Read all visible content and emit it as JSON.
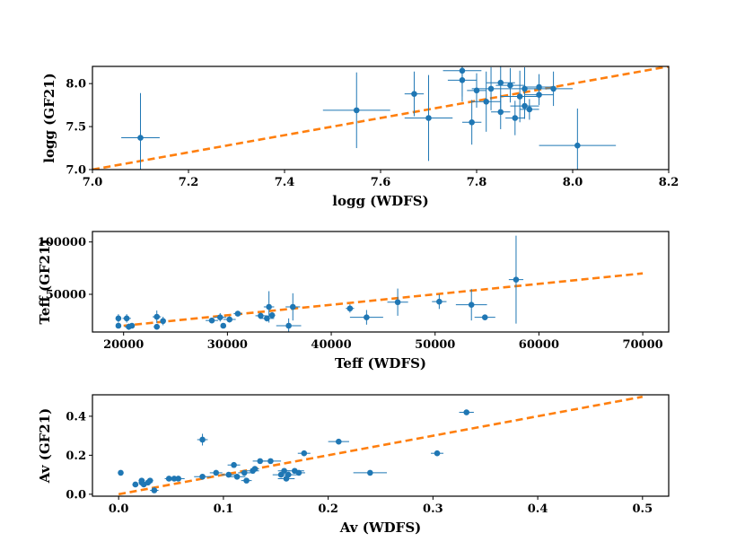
{
  "chart_data": [
    {
      "type": "scatter",
      "xlabel": "logg (WDFS)",
      "ylabel": "logg (GF21)",
      "xlim": [
        7.0,
        8.2
      ],
      "ylim": [
        7.0,
        8.2
      ],
      "xticks": [
        "7.0",
        "7.2",
        "7.4",
        "7.6",
        "7.8",
        "8.0",
        "8.2"
      ],
      "yticks": [
        "7.0",
        "7.5",
        "8.0"
      ],
      "marker_color": "#1f77b4",
      "line": {
        "x": [
          7.0,
          8.2
        ],
        "y": [
          7.0,
          8.2
        ],
        "color": "#ff7f0e",
        "style": "dashed"
      },
      "points": [
        {
          "x": 7.1,
          "y": 7.37,
          "xerr": 0.04,
          "yerr": 0.52
        },
        {
          "x": 7.55,
          "y": 7.69,
          "xerr": 0.07,
          "yerr": 0.44
        },
        {
          "x": 7.67,
          "y": 7.88,
          "xerr": 0.02,
          "yerr": 0.26
        },
        {
          "x": 7.7,
          "y": 7.6,
          "xerr": 0.05,
          "yerr": 0.5
        },
        {
          "x": 7.77,
          "y": 8.04,
          "xerr": 0.03,
          "yerr": 0.25
        },
        {
          "x": 7.77,
          "y": 8.15,
          "xerr": 0.04,
          "yerr": 0.3
        },
        {
          "x": 7.79,
          "y": 7.55,
          "xerr": 0.02,
          "yerr": 0.26
        },
        {
          "x": 7.8,
          "y": 7.92,
          "xerr": 0.02,
          "yerr": 0.2
        },
        {
          "x": 7.82,
          "y": 7.79,
          "xerr": 0.03,
          "yerr": 0.35
        },
        {
          "x": 7.83,
          "y": 7.94,
          "xerr": 0.04,
          "yerr": 0.25
        },
        {
          "x": 7.85,
          "y": 7.67,
          "xerr": 0.02,
          "yerr": 0.2
        },
        {
          "x": 7.85,
          "y": 8.01,
          "xerr": 0.03,
          "yerr": 0.3
        },
        {
          "x": 7.87,
          "y": 7.98,
          "xerr": 0.03,
          "yerr": 0.2
        },
        {
          "x": 7.88,
          "y": 7.6,
          "xerr": 0.02,
          "yerr": 0.2
        },
        {
          "x": 7.89,
          "y": 7.85,
          "xerr": 0.04,
          "yerr": 0.3
        },
        {
          "x": 7.9,
          "y": 7.94,
          "xerr": 0.03,
          "yerr": 0.25
        },
        {
          "x": 7.9,
          "y": 7.74,
          "xerr": 0.03,
          "yerr": 0.15
        },
        {
          "x": 7.91,
          "y": 7.7,
          "xerr": 0.02,
          "yerr": 0.12
        },
        {
          "x": 7.93,
          "y": 7.87,
          "xerr": 0.03,
          "yerr": 0.12
        },
        {
          "x": 7.93,
          "y": 7.96,
          "xerr": 0.03,
          "yerr": 0.15
        },
        {
          "x": 7.96,
          "y": 7.94,
          "xerr": 0.04,
          "yerr": 0.2
        },
        {
          "x": 8.01,
          "y": 7.28,
          "xerr": 0.08,
          "yerr": 0.43
        }
      ]
    },
    {
      "type": "scatter",
      "xlabel": "Teff (WDFS)",
      "ylabel": "Teff (GF21)",
      "xlim": [
        17000,
        72500
      ],
      "ylim": [
        14000,
        110000
      ],
      "xticks": [
        "20000",
        "30000",
        "40000",
        "50000",
        "60000",
        "70000"
      ],
      "yticks": [
        "50000",
        "100000"
      ],
      "marker_color": "#1f77b4",
      "line": {
        "x": [
          20000,
          70000
        ],
        "y": [
          20000,
          70000
        ],
        "color": "#ff7f0e",
        "style": "dashed"
      },
      "points": [
        {
          "x": 19500,
          "y": 27000,
          "xerr": 0,
          "yerr": 4000
        },
        {
          "x": 19500,
          "y": 20000,
          "xerr": 0,
          "yerr": 2000
        },
        {
          "x": 20300,
          "y": 27000,
          "xerr": 400,
          "yerr": 4000
        },
        {
          "x": 20500,
          "y": 19000,
          "xerr": 400,
          "yerr": 3000
        },
        {
          "x": 20800,
          "y": 20000,
          "xerr": 0,
          "yerr": 1500
        },
        {
          "x": 23200,
          "y": 28500,
          "xerr": 400,
          "yerr": 6000
        },
        {
          "x": 23200,
          "y": 19000,
          "xerr": 300,
          "yerr": 2000
        },
        {
          "x": 23800,
          "y": 24500,
          "xerr": 0,
          "yerr": 4000
        },
        {
          "x": 28500,
          "y": 25000,
          "xerr": 600,
          "yerr": 1500
        },
        {
          "x": 29300,
          "y": 28000,
          "xerr": 600,
          "yerr": 4000
        },
        {
          "x": 29600,
          "y": 20000,
          "xerr": 0,
          "yerr": 1500
        },
        {
          "x": 30200,
          "y": 26000,
          "xerr": 600,
          "yerr": 3000
        },
        {
          "x": 31000,
          "y": 31500,
          "xerr": 400,
          "yerr": 1500
        },
        {
          "x": 33200,
          "y": 29500,
          "xerr": 500,
          "yerr": 3000
        },
        {
          "x": 33800,
          "y": 27000,
          "xerr": 700,
          "yerr": 3000
        },
        {
          "x": 34000,
          "y": 38000,
          "xerr": 500,
          "yerr": 15000
        },
        {
          "x": 34300,
          "y": 30000,
          "xerr": 300,
          "yerr": 3000
        },
        {
          "x": 35900,
          "y": 20000,
          "xerr": 1200,
          "yerr": 7000
        },
        {
          "x": 36300,
          "y": 38000,
          "xerr": 700,
          "yerr": 13000
        },
        {
          "x": 41800,
          "y": 36500,
          "xerr": 400,
          "yerr": 4000
        },
        {
          "x": 43400,
          "y": 28000,
          "xerr": 1600,
          "yerr": 7000
        },
        {
          "x": 46400,
          "y": 42500,
          "xerr": 1000,
          "yerr": 13000
        },
        {
          "x": 50400,
          "y": 43000,
          "xerr": 700,
          "yerr": 7000
        },
        {
          "x": 53500,
          "y": 40000,
          "xerr": 1500,
          "yerr": 15000
        },
        {
          "x": 54800,
          "y": 28000,
          "xerr": 1000,
          "yerr": 1500
        },
        {
          "x": 57800,
          "y": 64000,
          "xerr": 700,
          "yerr": 42000
        }
      ]
    },
    {
      "type": "scatter",
      "xlabel": "Av (WDFS)",
      "ylabel": "Av (GF21)",
      "xlim": [
        -0.025,
        0.525
      ],
      "ylim": [
        -0.01,
        0.51
      ],
      "xticks": [
        "0.0",
        "0.1",
        "0.2",
        "0.3",
        "0.4",
        "0.5"
      ],
      "yticks": [
        "0.0",
        "0.2",
        "0.4"
      ],
      "marker_color": "#1f77b4",
      "line": {
        "x": [
          0.0,
          0.5
        ],
        "y": [
          0.0,
          0.5
        ],
        "color": "#ff7f0e",
        "style": "dashed"
      },
      "points": [
        {
          "x": 0.002,
          "y": 0.11,
          "xerr": 0,
          "yerr": 0
        },
        {
          "x": 0.016,
          "y": 0.05,
          "xerr": 0.003,
          "yerr": 0
        },
        {
          "x": 0.022,
          "y": 0.07,
          "xerr": 0.003,
          "yerr": 0
        },
        {
          "x": 0.022,
          "y": 0.06,
          "xerr": 0.003,
          "yerr": 0
        },
        {
          "x": 0.024,
          "y": 0.05,
          "xerr": 0.003,
          "yerr": 0
        },
        {
          "x": 0.028,
          "y": 0.06,
          "xerr": 0.004,
          "yerr": 0
        },
        {
          "x": 0.03,
          "y": 0.07,
          "xerr": 0.003,
          "yerr": 0
        },
        {
          "x": 0.034,
          "y": 0.02,
          "xerr": 0.004,
          "yerr": 0
        },
        {
          "x": 0.048,
          "y": 0.08,
          "xerr": 0.004,
          "yerr": 0
        },
        {
          "x": 0.053,
          "y": 0.08,
          "xerr": 0.005,
          "yerr": 0
        },
        {
          "x": 0.057,
          "y": 0.08,
          "xerr": 0.006,
          "yerr": 0
        },
        {
          "x": 0.08,
          "y": 0.28,
          "xerr": 0.005,
          "yerr": 0.03
        },
        {
          "x": 0.08,
          "y": 0.09,
          "xerr": 0.008,
          "yerr": 0
        },
        {
          "x": 0.093,
          "y": 0.11,
          "xerr": 0.006,
          "yerr": 0
        },
        {
          "x": 0.105,
          "y": 0.1,
          "xerr": 0.007,
          "yerr": 0
        },
        {
          "x": 0.11,
          "y": 0.15,
          "xerr": 0.006,
          "yerr": 0
        },
        {
          "x": 0.113,
          "y": 0.09,
          "xerr": 0.008,
          "yerr": 0
        },
        {
          "x": 0.12,
          "y": 0.11,
          "xerr": 0.006,
          "yerr": 0
        },
        {
          "x": 0.122,
          "y": 0.07,
          "xerr": 0.005,
          "yerr": 0
        },
        {
          "x": 0.128,
          "y": 0.12,
          "xerr": 0.006,
          "yerr": 0
        },
        {
          "x": 0.13,
          "y": 0.13,
          "xerr": 0.004,
          "yerr": 0
        },
        {
          "x": 0.135,
          "y": 0.17,
          "xerr": 0.007,
          "yerr": 0
        },
        {
          "x": 0.145,
          "y": 0.17,
          "xerr": 0.01,
          "yerr": 0
        },
        {
          "x": 0.155,
          "y": 0.1,
          "xerr": 0.008,
          "yerr": 0
        },
        {
          "x": 0.158,
          "y": 0.12,
          "xerr": 0.006,
          "yerr": 0
        },
        {
          "x": 0.16,
          "y": 0.08,
          "xerr": 0.008,
          "yerr": 0
        },
        {
          "x": 0.162,
          "y": 0.1,
          "xerr": 0.009,
          "yerr": 0
        },
        {
          "x": 0.168,
          "y": 0.12,
          "xerr": 0.009,
          "yerr": 0
        },
        {
          "x": 0.172,
          "y": 0.11,
          "xerr": 0.006,
          "yerr": 0
        },
        {
          "x": 0.177,
          "y": 0.21,
          "xerr": 0.006,
          "yerr": 0
        },
        {
          "x": 0.21,
          "y": 0.27,
          "xerr": 0.01,
          "yerr": 0
        },
        {
          "x": 0.24,
          "y": 0.11,
          "xerr": 0.016,
          "yerr": 0
        },
        {
          "x": 0.304,
          "y": 0.21,
          "xerr": 0.006,
          "yerr": 0
        },
        {
          "x": 0.332,
          "y": 0.42,
          "xerr": 0.007,
          "yerr": 0
        }
      ]
    }
  ]
}
